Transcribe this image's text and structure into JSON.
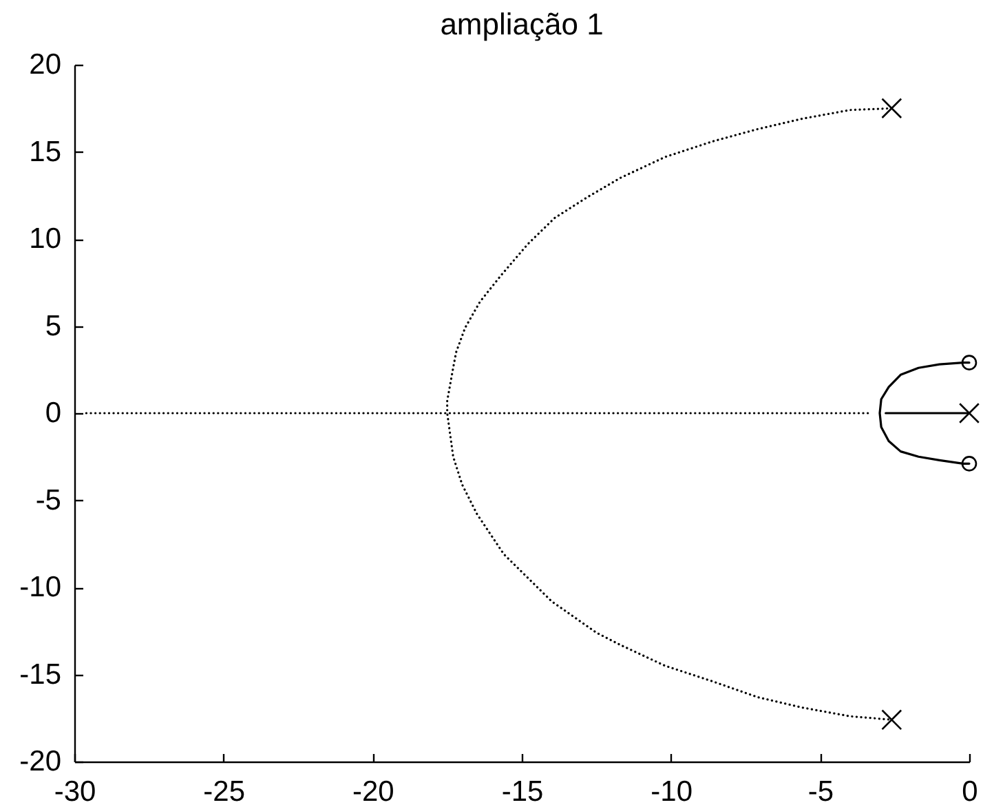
{
  "chart_data": {
    "type": "line",
    "title": "ampliação 1",
    "xlim": [
      -30,
      0
    ],
    "xticks": [
      -30,
      -25,
      -20,
      -15,
      -10,
      -5,
      0
    ],
    "ylim": [
      -20,
      20
    ],
    "yticks": [
      -20,
      -15,
      -10,
      -5,
      0,
      5,
      10,
      15,
      20
    ],
    "series": [
      {
        "line_style": "dotted",
        "color": "#000000",
        "x": [
          -2.6,
          -4.0,
          -5.6,
          -7.1,
          -8.6,
          -10.2,
          -11.7,
          -12.8,
          -13.9,
          -14.8,
          -15.7,
          -16.4,
          -16.9,
          -17.2,
          -17.3,
          -17.5,
          -17.5,
          -17.3,
          -17.0,
          -16.5,
          -15.6,
          -14.0,
          -12.5,
          -11.7,
          -10.2,
          -8.6,
          -7.1,
          -5.6,
          -4.0,
          -2.6
        ],
        "values": [
          17.5,
          17.4,
          16.9,
          16.3,
          15.6,
          14.7,
          13.5,
          12.4,
          11.2,
          9.7,
          7.9,
          6.4,
          4.9,
          3.5,
          2.6,
          0.7,
          0,
          -2.5,
          -4.1,
          -5.8,
          -8.1,
          -10.8,
          -12.6,
          -13.3,
          -14.5,
          -15.4,
          -16.3,
          -16.9,
          -17.4,
          -17.6
        ]
      },
      {
        "line_style": "dotted",
        "color": "#000000",
        "x": [
          -29.6,
          -3.3
        ],
        "values": [
          0,
          0
        ]
      },
      {
        "line_style": "solid",
        "color": "#000000",
        "x": [
          -2.8,
          0
        ],
        "values": [
          0,
          0
        ]
      },
      {
        "line_style": "solid",
        "color": "#000000",
        "x": [
          0,
          -0.2,
          -1.0,
          -1.7,
          -2.3,
          -2.7,
          -2.95,
          -3.0,
          -2.95,
          -2.7,
          -2.3,
          -1.7,
          -1.0,
          -0.2,
          0
        ],
        "values": [
          2.9,
          2.9,
          2.8,
          2.6,
          2.2,
          1.5,
          0.8,
          0,
          -0.8,
          -1.6,
          -2.2,
          -2.5,
          -2.7,
          -2.9,
          -2.9
        ]
      },
      {
        "type": "scatter",
        "marker": "cross",
        "color": "#000000",
        "x": [
          -2.6,
          -2.6,
          0
        ],
        "values": [
          17.5,
          -17.6,
          0
        ]
      },
      {
        "type": "scatter",
        "marker": "circle",
        "color": "#000000",
        "x": [
          0,
          0
        ],
        "values": [
          2.9,
          -2.9
        ]
      }
    ]
  }
}
